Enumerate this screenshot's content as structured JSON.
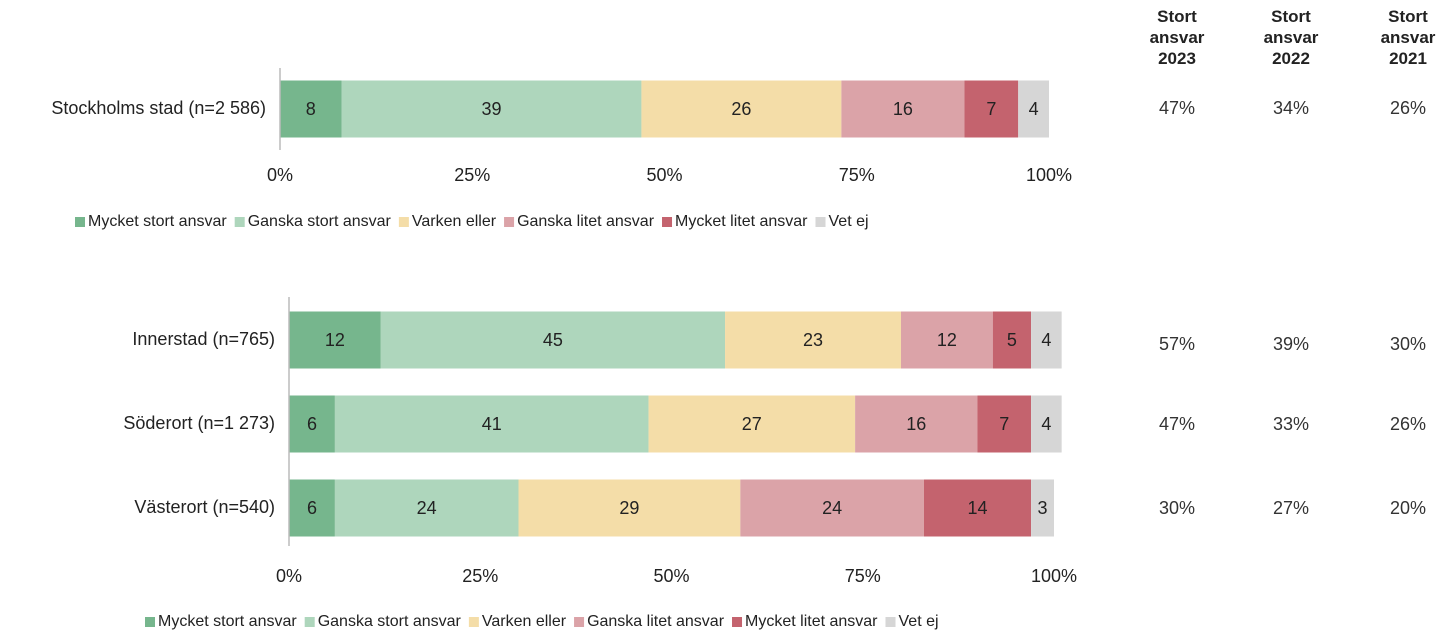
{
  "chart_data": [
    {
      "type": "bar",
      "orientation": "horizontal",
      "stacked": true,
      "categories": [
        "Stockholms stad (n=2 586)"
      ],
      "series": [
        {
          "name": "Mycket stort ansvar",
          "color": "#76b68d",
          "values": [
            8
          ]
        },
        {
          "name": "Ganska stort ansvar",
          "color": "#aed6bc",
          "values": [
            39
          ]
        },
        {
          "name": "Varken eller",
          "color": "#f4dda8",
          "values": [
            26
          ]
        },
        {
          "name": "Ganska litet ansvar",
          "color": "#dba3a8",
          "values": [
            16
          ]
        },
        {
          "name": "Mycket litet ansvar",
          "color": "#c4636e",
          "values": [
            7
          ]
        },
        {
          "name": "Vet ej",
          "color": "#d6d6d6",
          "values": [
            4
          ]
        }
      ],
      "xlim": [
        0,
        100
      ],
      "xticks": [
        {
          "value": 0,
          "label": "0%"
        },
        {
          "value": 25,
          "label": "25%"
        },
        {
          "value": 50,
          "label": "50%"
        },
        {
          "value": 75,
          "label": "75%"
        },
        {
          "value": 100,
          "label": "100%"
        }
      ],
      "legend": "bottom"
    },
    {
      "type": "bar",
      "orientation": "horizontal",
      "stacked": true,
      "categories": [
        "Innerstad (n=765)",
        "Söderort (n=1 273)",
        "Västerort (n=540)"
      ],
      "series": [
        {
          "name": "Mycket stort ansvar",
          "color": "#76b68d",
          "values": [
            12,
            6,
            6
          ]
        },
        {
          "name": "Ganska stort ansvar",
          "color": "#aed6bc",
          "values": [
            45,
            41,
            24
          ]
        },
        {
          "name": "Varken eller",
          "color": "#f4dda8",
          "values": [
            23,
            27,
            29
          ]
        },
        {
          "name": "Ganska litet ansvar",
          "color": "#dba3a8",
          "values": [
            12,
            16,
            24
          ]
        },
        {
          "name": "Mycket litet ansvar",
          "color": "#c4636e",
          "values": [
            5,
            7,
            14
          ]
        },
        {
          "name": "Vet ej",
          "color": "#d6d6d6",
          "values": [
            4,
            4,
            3
          ]
        }
      ],
      "xlim": [
        0,
        100
      ],
      "xticks": [
        {
          "value": 0,
          "label": "0%"
        },
        {
          "value": 25,
          "label": "25%"
        },
        {
          "value": 50,
          "label": "50%"
        },
        {
          "value": 75,
          "label": "75%"
        },
        {
          "value": 100,
          "label": "100%"
        }
      ],
      "legend": "bottom"
    }
  ],
  "table": {
    "columns": [
      "Stort ansvar 2023",
      "Stort ansvar 2022",
      "Stort ansvar 2021"
    ],
    "rows": [
      [
        "47%",
        "34%",
        "26%"
      ],
      [
        "57%",
        "39%",
        "30%"
      ],
      [
        "47%",
        "33%",
        "26%"
      ],
      [
        "30%",
        "27%",
        "20%"
      ]
    ]
  }
}
